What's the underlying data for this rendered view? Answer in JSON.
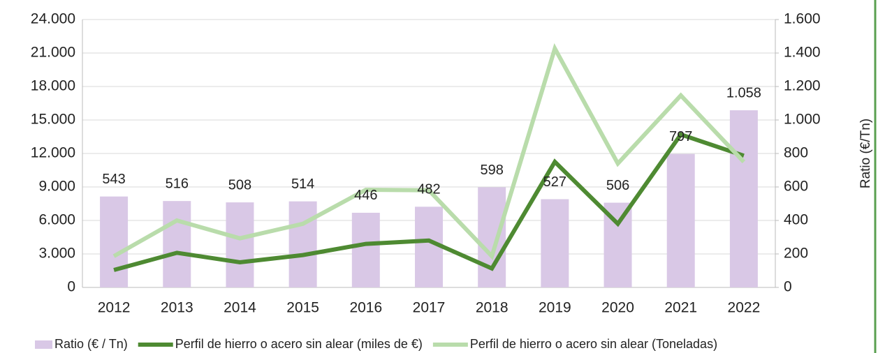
{
  "chart_data": {
    "type": "bar+line",
    "categories": [
      "2012",
      "2013",
      "2014",
      "2015",
      "2016",
      "2017",
      "2018",
      "2019",
      "2020",
      "2021",
      "2022"
    ],
    "series": [
      {
        "name": "Ratio (€ / Tn)",
        "type": "bar",
        "axis": "y2",
        "color": "#d9c8e6",
        "values": [
          543,
          516,
          508,
          514,
          446,
          482,
          598,
          527,
          506,
          797,
          1058
        ],
        "value_labels": [
          "543",
          "516",
          "508",
          "514",
          "446",
          "482",
          "598",
          "527",
          "506",
          "797",
          "1.058"
        ]
      },
      {
        "name": "Perfil de hierro o acero sin alear (miles de €)",
        "type": "line",
        "axis": "y",
        "color": "#4e8a32",
        "values": [
          1560,
          3100,
          2250,
          2900,
          3900,
          4200,
          1700,
          11250,
          5700,
          13700,
          11800
        ]
      },
      {
        "name": "Perfil de hierro o acero sin alear (Toneladas)",
        "type": "line",
        "axis": "y",
        "color": "#b9dcab",
        "values": [
          2800,
          6000,
          4400,
          5700,
          8750,
          8700,
          2800,
          21400,
          11100,
          17200,
          11250
        ]
      }
    ],
    "ylim": [
      0,
      24000
    ],
    "yticks": [
      0,
      {
        "value": 3000,
        "label": "3.000"
      },
      {
        "value": 6000,
        "label": "6.000"
      },
      {
        "value": 9000,
        "label": "9.000"
      },
      {
        "value": 12000,
        "label": "12.000"
      },
      {
        "value": 15000,
        "label": "15.000"
      },
      {
        "value": 18000,
        "label": "18.000"
      },
      {
        "value": 21000,
        "label": "21.000"
      },
      {
        "value": 24000,
        "label": "24.000"
      }
    ],
    "y2lim": [
      0,
      1600
    ],
    "y2ticks": [
      0,
      200,
      400,
      600,
      800,
      {
        "value": 1000,
        "label": "1.000"
      },
      {
        "value": 1200,
        "label": "1.200"
      },
      {
        "value": 1400,
        "label": "1.400"
      },
      {
        "value": 1600,
        "label": "1.600"
      }
    ],
    "y2label": "Ratio (€/Tn)",
    "grid": true,
    "legend": "bottom"
  }
}
